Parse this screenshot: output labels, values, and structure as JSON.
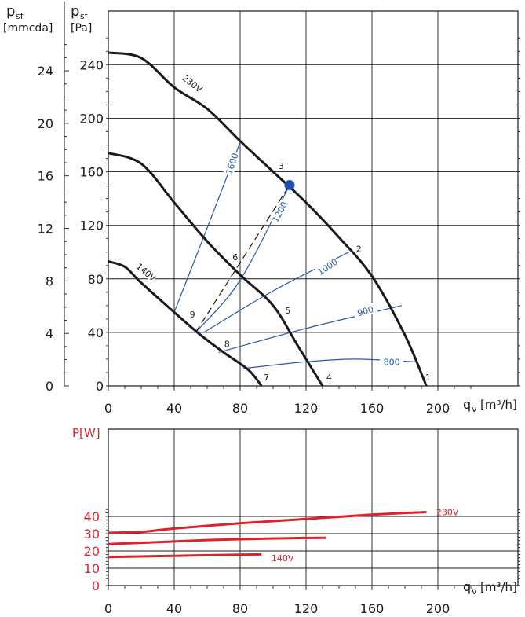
{
  "chart_data": [
    {
      "type": "line",
      "title": "",
      "axis_labels": {
        "y_left_symbol": "p",
        "y_left_sub": "sf",
        "y_left_unit": "[mmcda]",
        "y_right_symbol": "p",
        "y_right_sub": "sf",
        "y_right_unit": "[Pa]",
        "x_symbol": "q",
        "x_sub": "v",
        "x_unit": "[m³/h]"
      },
      "xlim": [
        0,
        220
      ],
      "ylim": [
        0,
        260
      ],
      "x_ticks": [
        0,
        40,
        80,
        120,
        160,
        200
      ],
      "y_ticks_pa": [
        0,
        40,
        80,
        120,
        160,
        200,
        240
      ],
      "y_ticks_mmcda": [
        0,
        4,
        8,
        12,
        16,
        20,
        24
      ],
      "grid": true,
      "colors": {
        "fan_curve": "#1a1a1a",
        "rpm_curve": "#2a5ba8",
        "duty_point": "#1f4fae",
        "dashed": "#1a1a1a"
      },
      "series": [
        {
          "name": "230V",
          "values": [
            [
              0,
              249
            ],
            [
              20,
              245
            ],
            [
              40,
              223
            ],
            [
              60,
              207
            ],
            [
              80,
              183
            ],
            [
              100,
              160
            ],
            [
              120,
              137
            ],
            [
              140,
              111
            ],
            [
              160,
              82
            ],
            [
              180,
              38
            ],
            [
              193,
              0
            ]
          ]
        },
        {
          "values": [
            [
              0,
              174
            ],
            [
              20,
              166
            ],
            [
              40,
              137
            ],
            [
              60,
              108
            ],
            [
              80,
              83
            ],
            [
              100,
              60
            ],
            [
              115,
              30
            ],
            [
              130,
              0
            ]
          ]
        },
        {
          "name": "140V",
          "values": [
            [
              0,
              93
            ],
            [
              10,
              89
            ],
            [
              20,
              77
            ],
            [
              40,
              55
            ],
            [
              55,
              39
            ],
            [
              70,
              25
            ],
            [
              85,
              12
            ],
            [
              93,
              0
            ]
          ]
        }
      ],
      "rpm_curves": [
        {
          "label": "1600",
          "values": [
            [
              40,
              55
            ],
            [
              60,
              118
            ],
            [
              80,
              182
            ]
          ]
        },
        {
          "label": "1200",
          "values": [
            [
              53,
              40
            ],
            [
              80,
              79
            ],
            [
              110,
              150
            ]
          ]
        },
        {
          "label": "1000",
          "values": [
            [
              58,
              40
            ],
            [
              100,
              71
            ],
            [
              146,
              100
            ]
          ]
        },
        {
          "label": "900",
          "values": [
            [
              67,
              25
            ],
            [
              120,
              43
            ],
            [
              178,
              60
            ]
          ]
        },
        {
          "label": "800",
          "values": [
            [
              82,
              13
            ],
            [
              120,
              18
            ],
            [
              150,
              20
            ],
            [
              186,
              18
            ]
          ]
        }
      ],
      "dashed_line": [
        [
          53,
          40
        ],
        [
          110,
          150
        ]
      ],
      "duty_point": {
        "x": 110,
        "y": 150
      },
      "point_labels": [
        {
          "text": "1",
          "x": 194,
          "y": 4
        },
        {
          "text": "2",
          "x": 152,
          "y": 100
        },
        {
          "text": "3",
          "x": 105,
          "y": 162
        },
        {
          "text": "4",
          "x": 134,
          "y": 4
        },
        {
          "text": "5",
          "x": 109,
          "y": 54
        },
        {
          "text": "6",
          "x": 77,
          "y": 94
        },
        {
          "text": "7",
          "x": 96,
          "y": 4
        },
        {
          "text": "8",
          "x": 72,
          "y": 29
        },
        {
          "text": "9",
          "x": 51,
          "y": 51
        }
      ],
      "curve_labels": [
        {
          "text": "230V",
          "x": 51,
          "y": 226
        },
        {
          "text": "140V",
          "x": 23,
          "y": 85
        }
      ]
    },
    {
      "type": "line",
      "title": "",
      "axis_labels": {
        "y_label": "P[W]",
        "x_symbol": "q",
        "x_sub": "v",
        "x_unit": "[m³/h]"
      },
      "xlim": [
        0,
        220
      ],
      "ylim": [
        0,
        50
      ],
      "x_ticks": [
        0,
        40,
        80,
        120,
        160,
        200
      ],
      "y_ticks": [
        0,
        10,
        20,
        30,
        40
      ],
      "grid": true,
      "colors": {
        "power_curve": "#e0202a",
        "label": "#e0202a"
      },
      "series": [
        {
          "name": "230V",
          "values": [
            [
              0,
              30.5
            ],
            [
              20,
              31
            ],
            [
              40,
              33
            ],
            [
              80,
              36
            ],
            [
              120,
              38.5
            ],
            [
              160,
              41
            ],
            [
              193,
              42.5
            ]
          ]
        },
        {
          "values": [
            [
              0,
              24
            ],
            [
              40,
              25.5
            ],
            [
              60,
              26.3
            ],
            [
              80,
              26.8
            ],
            [
              110,
              27.4
            ],
            [
              132,
              27.6
            ]
          ]
        },
        {
          "name": "140V",
          "values": [
            [
              0,
              16.5
            ],
            [
              40,
              17.2
            ],
            [
              80,
              17.8
            ],
            [
              93,
              18
            ]
          ]
        }
      ],
      "curve_labels": [
        {
          "text": "230V",
          "x": 199,
          "y": 42.5
        },
        {
          "text": "140V",
          "x": 99,
          "y": 16
        }
      ]
    }
  ]
}
